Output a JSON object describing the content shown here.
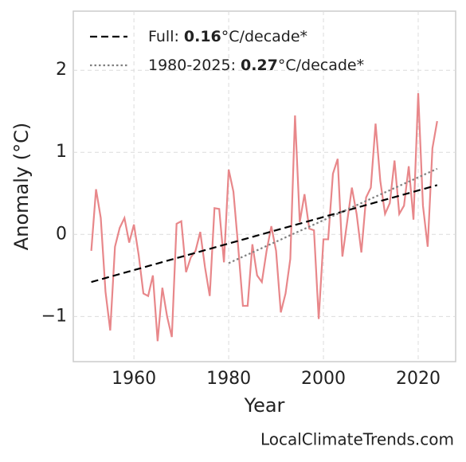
{
  "chart_data": {
    "type": "line",
    "xlabel": "Year",
    "ylabel": "Anomaly (°C)",
    "footer": "LocalClimateTrends.com",
    "xlim": [
      1947.2,
      2027.9
    ],
    "ylim": [
      -1.55,
      2.72
    ],
    "xticks": [
      1960,
      1980,
      2000,
      2020
    ],
    "yticks": [
      {
        "value": -1,
        "label": "−1"
      },
      0,
      1,
      2
    ],
    "grid": true,
    "legend": "upper left",
    "series": [
      {
        "color": "#e8878a",
        "style": "solid",
        "x": [
          1951,
          1952,
          1953,
          1954,
          1955,
          1956,
          1957,
          1958,
          1959,
          1960,
          1961,
          1962,
          1963,
          1964,
          1965,
          1966,
          1967,
          1968,
          1969,
          1970,
          1971,
          1972,
          1973,
          1974,
          1975,
          1976,
          1977,
          1978,
          1979,
          1980,
          1981,
          1982,
          1983,
          1984,
          1985,
          1986,
          1987,
          1988,
          1989,
          1990,
          1991,
          1992,
          1993,
          1994,
          1995,
          1996,
          1997,
          1998,
          1999,
          2000,
          2001,
          2002,
          2003,
          2004,
          2005,
          2006,
          2007,
          2008,
          2009,
          2010,
          2011,
          2012,
          2013,
          2014,
          2015,
          2016,
          2017,
          2018,
          2019,
          2020,
          2021,
          2022,
          2023,
          2024
        ],
        "values": [
          -0.2,
          0.55,
          0.2,
          -0.7,
          -1.17,
          -0.15,
          0.08,
          0.2,
          -0.1,
          0.12,
          -0.25,
          -0.72,
          -0.75,
          -0.5,
          -1.3,
          -0.65,
          -1.0,
          -1.25,
          0.13,
          0.16,
          -0.46,
          -0.28,
          -0.2,
          0.03,
          -0.4,
          -0.75,
          0.32,
          0.31,
          -0.34,
          0.79,
          0.52,
          -0.15,
          -0.87,
          -0.87,
          -0.12,
          -0.5,
          -0.58,
          -0.2,
          0.1,
          -0.2,
          -0.95,
          -0.72,
          -0.3,
          1.45,
          0.15,
          0.49,
          0.07,
          0.05,
          -1.03,
          -0.06,
          -0.06,
          0.74,
          0.92,
          -0.27,
          0.15,
          0.57,
          0.25,
          -0.22,
          0.45,
          0.57,
          1.35,
          0.65,
          0.25,
          0.38,
          0.9,
          0.25,
          0.35,
          0.83,
          0.18,
          1.72,
          0.35,
          -0.15,
          1.05,
          1.38
        ]
      },
      {
        "name": "Full:",
        "slope": 0.16,
        "unit": "°C/decade*",
        "color": "#000000",
        "style": "dashed",
        "x": [
          1951,
          2024
        ],
        "values": [
          -0.58,
          0.6
        ]
      },
      {
        "name": "1980-2025:",
        "slope": 0.27,
        "unit": "°C/decade*",
        "color": "#808080",
        "style": "dotted",
        "x": [
          1980,
          2024
        ],
        "values": [
          -0.35,
          0.8
        ]
      }
    ]
  }
}
